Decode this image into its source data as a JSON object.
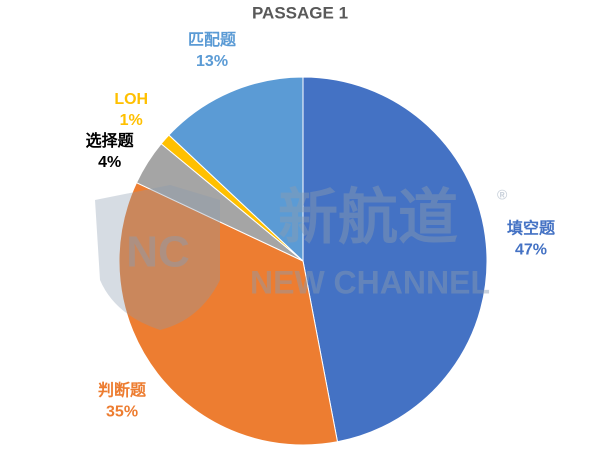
{
  "chart_data": {
    "type": "pie",
    "title": "PASSAGE 1",
    "categories": [
      "填空题",
      "判断题",
      "选择题",
      "LOH",
      "匹配题"
    ],
    "values": [
      47,
      35,
      4,
      1,
      13
    ],
    "value_labels": [
      "47%",
      "35%",
      "4%",
      "1%",
      "13%"
    ],
    "colors": [
      "#4472c4",
      "#ed7d31",
      "#a5a5a5",
      "#ffc000",
      "#5b9bd5"
    ],
    "label_colors": [
      "#4472c4",
      "#ed7d31",
      "#000000",
      "#ffc000",
      "#5b9bd5"
    ]
  },
  "watermark": {
    "logo": "NC",
    "brand_cn": "新航道",
    "brand_en": "NEW CHANNEL",
    "mark": "®"
  }
}
